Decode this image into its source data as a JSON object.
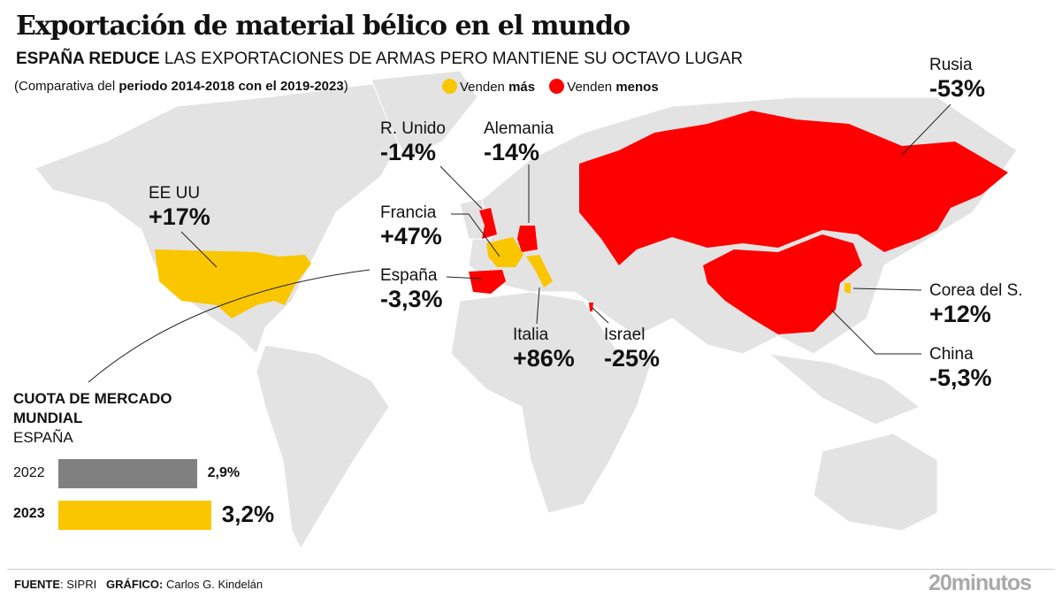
{
  "header": {
    "title": "Exportación de material bélico en el mundo",
    "subtitle_bold": "ESPAÑA REDUCE",
    "subtitle_rest": " LAS EXPORTACIONES DE ARMAS PERO MANTIENE SU OCTAVO LUGAR",
    "note_pre": "(Comparativa del ",
    "note_bold": "periodo 2014-2018 con el 2019-2023",
    ")": ")",
    "note_post": ")"
  },
  "legend": [
    {
      "pre": "Venden ",
      "bold": "más",
      "color": "#f9c600"
    },
    {
      "pre": "Venden ",
      "bold": "menos",
      "color": "#ff0000"
    }
  ],
  "countries": [
    {
      "name": "EE UU",
      "change": "+17%",
      "trend": "más"
    },
    {
      "name": "R. Unido",
      "change": "-14%",
      "trend": "menos"
    },
    {
      "name": "Alemania",
      "change": "-14%",
      "trend": "menos"
    },
    {
      "name": "Francia",
      "change": "+47%",
      "trend": "más"
    },
    {
      "name": "España",
      "change": "-3,3%",
      "trend": "menos"
    },
    {
      "name": "Italia",
      "change": "+86%",
      "trend": "más"
    },
    {
      "name": "Israel",
      "change": "-25%",
      "trend": "menos"
    },
    {
      "name": "Rusia",
      "change": "-53%",
      "trend": "menos"
    },
    {
      "name": "Corea del S.",
      "change": "+12%",
      "trend": "más"
    },
    {
      "name": "China",
      "change": "-5,3%",
      "trend": "menos"
    }
  ],
  "chart_data": {
    "type": "bar",
    "title": "CUOTA DE MERCADO MUNDIAL",
    "subtitle": "ESPAÑA",
    "categories": [
      "2022",
      "2023"
    ],
    "values": [
      2.9,
      3.2
    ],
    "value_labels": [
      "2,9%",
      "3,2%"
    ],
    "colors": [
      "#808080",
      "#f9c600"
    ]
  },
  "footer": {
    "source_label": "FUENTE",
    "source": "SIPRI",
    "graphic_label": "GRÁFICO:",
    "graphic": "Carlos G. Kindelán",
    "logo": "20minutos"
  }
}
